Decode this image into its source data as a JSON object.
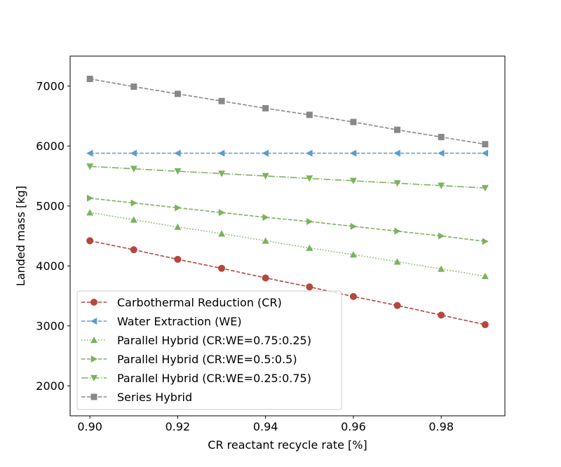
{
  "chart_data": {
    "type": "line",
    "title": "",
    "xlabel": "CR reactant recycle rate [%]",
    "ylabel": "Landed mass [kg]",
    "xlim": [
      0.8955,
      0.9945
    ],
    "ylim": [
      1500,
      7500
    ],
    "xticks": [
      0.9,
      0.92,
      0.94,
      0.96,
      0.98
    ],
    "xtick_labels": [
      "0.90",
      "0.92",
      "0.94",
      "0.96",
      "0.98"
    ],
    "yticks": [
      2000,
      3000,
      4000,
      5000,
      6000,
      7000
    ],
    "ytick_labels": [
      "2000",
      "3000",
      "4000",
      "5000",
      "6000",
      "7000"
    ],
    "grid": false,
    "legend_position": "lower-left",
    "x": [
      0.9,
      0.91,
      0.92,
      0.93,
      0.94,
      0.95,
      0.96,
      0.97,
      0.98,
      0.99
    ],
    "series": [
      {
        "name": "Carbothermal Reduction (CR)",
        "color": "#b5473f",
        "linestyle": "dashed",
        "marker": "circle",
        "values": [
          4420,
          4270,
          4110,
          3960,
          3800,
          3650,
          3490,
          3340,
          3180,
          3020
        ]
      },
      {
        "name": "Water Extraction (WE)",
        "color": "#5b9bd0",
        "linestyle": "dashed",
        "marker": "triangle-left",
        "values": [
          5880,
          5880,
          5880,
          5880,
          5880,
          5880,
          5880,
          5880,
          5880,
          5880
        ]
      },
      {
        "name": "Parallel Hybrid (CR:WE=0.75:0.25)",
        "color": "#7cb25f",
        "linestyle": "dotted",
        "marker": "triangle-up",
        "values": [
          4890,
          4770,
          4650,
          4540,
          4420,
          4300,
          4190,
          4070,
          3950,
          3830
        ]
      },
      {
        "name": "Parallel Hybrid (CR:WE=0.5:0.5)",
        "color": "#7cb25f",
        "linestyle": "dashed",
        "marker": "triangle-right",
        "values": [
          5130,
          5050,
          4970,
          4890,
          4810,
          4740,
          4660,
          4580,
          4500,
          4410
        ]
      },
      {
        "name": "Parallel Hybrid (CR:WE=0.25:0.75)",
        "color": "#7cb25f",
        "linestyle": "dashdot",
        "marker": "triangle-down",
        "values": [
          5660,
          5620,
          5580,
          5540,
          5500,
          5460,
          5420,
          5380,
          5340,
          5300
        ]
      },
      {
        "name": "Series Hybrid",
        "color": "#888888",
        "linestyle": "dashed",
        "marker": "square",
        "values": [
          7120,
          6990,
          6870,
          6750,
          6630,
          6520,
          6400,
          6270,
          6150,
          6030
        ]
      }
    ]
  }
}
